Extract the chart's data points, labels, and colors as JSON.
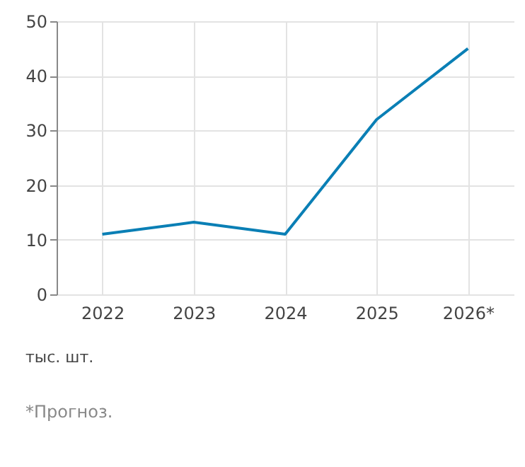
{
  "chart_data": {
    "type": "line",
    "categories": [
      "2022",
      "2023",
      "2024",
      "2025",
      "2026*"
    ],
    "series": [
      {
        "color": "#0a7fb5",
        "values": [
          11,
          13.2,
          11,
          32,
          45
        ]
      }
    ],
    "ylim": [
      0,
      50
    ],
    "yticks": [
      0,
      10,
      20,
      30,
      40,
      50
    ],
    "grid": true,
    "annotations": [
      "тыс. шт.",
      "*Прогноз."
    ]
  }
}
